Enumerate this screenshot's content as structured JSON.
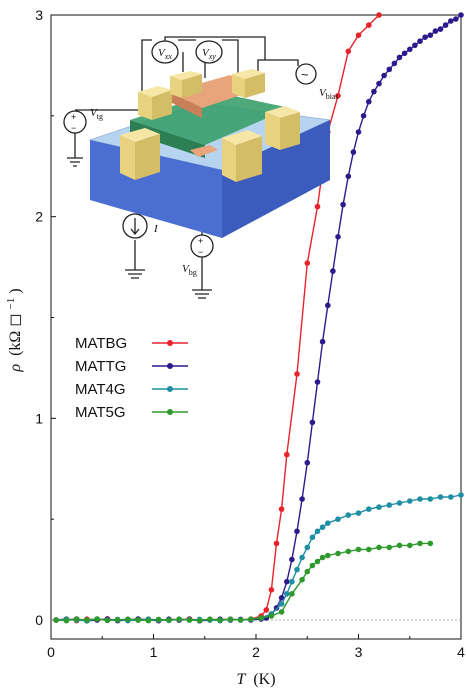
{
  "chart_data": {
    "type": "line",
    "title": "",
    "xlabel": "T",
    "xlabel_unit": "(K)",
    "ylabel": "ρ",
    "ylabel_unit": "(kΩ ◻",
    "ylabel_exp": "−1",
    "xlim": [
      0,
      4
    ],
    "ylim": [
      -0.1,
      3
    ],
    "xticks": [
      "0",
      "1",
      "2",
      "3",
      "4"
    ],
    "yticks": [
      "0",
      "1",
      "2",
      "3"
    ],
    "reference_line": 0,
    "legend_position": "center-left",
    "series": [
      {
        "name": "MATBG",
        "color": "#e8232a",
        "x": [
          0.05,
          0.15,
          0.25,
          0.35,
          0.45,
          0.55,
          0.65,
          0.75,
          0.85,
          0.95,
          1.05,
          1.15,
          1.25,
          1.35,
          1.45,
          1.55,
          1.65,
          1.75,
          1.85,
          1.95,
          2.05,
          2.1,
          2.15,
          2.2,
          2.25,
          2.3,
          2.4,
          2.5,
          2.6,
          2.7,
          2.8,
          2.9,
          3.0,
          3.1,
          3.2
        ],
        "y": [
          0.0,
          0.005,
          -0.003,
          0.004,
          0.0,
          0.006,
          -0.002,
          0.003,
          0.0,
          0.004,
          -0.003,
          0.002,
          0.0,
          0.005,
          -0.002,
          0.003,
          0.0,
          0.004,
          0.0,
          0.005,
          0.02,
          0.05,
          0.15,
          0.38,
          0.55,
          0.82,
          1.22,
          1.77,
          2.05,
          2.42,
          2.6,
          2.82,
          2.9,
          2.95,
          3.0
        ]
      },
      {
        "name": "MATTG",
        "color": "#2b1b8c",
        "x": [
          0.05,
          0.15,
          0.25,
          0.35,
          0.45,
          0.55,
          0.65,
          0.75,
          0.85,
          0.95,
          1.05,
          1.15,
          1.25,
          1.35,
          1.45,
          1.55,
          1.65,
          1.75,
          1.85,
          1.95,
          2.05,
          2.1,
          2.15,
          2.2,
          2.25,
          2.3,
          2.35,
          2.4,
          2.45,
          2.5,
          2.55,
          2.6,
          2.65,
          2.7,
          2.75,
          2.8,
          2.85,
          2.9,
          2.95,
          3.0,
          3.05,
          3.1,
          3.15,
          3.2,
          3.25,
          3.3,
          3.35,
          3.4,
          3.45,
          3.5,
          3.55,
          3.6,
          3.65,
          3.7,
          3.75,
          3.8,
          3.85,
          3.9,
          3.95,
          4.0
        ],
        "y": [
          0.0,
          0.0,
          0.005,
          -0.004,
          0.0,
          0.004,
          -0.003,
          0.0,
          0.005,
          0.0,
          -0.003,
          0.004,
          0.0,
          0.003,
          -0.004,
          0.0,
          0.004,
          0.0,
          0.003,
          0.0,
          0.005,
          0.01,
          0.03,
          0.06,
          0.11,
          0.19,
          0.3,
          0.44,
          0.6,
          0.78,
          0.98,
          1.18,
          1.38,
          1.56,
          1.73,
          1.9,
          2.06,
          2.2,
          2.32,
          2.42,
          2.5,
          2.57,
          2.62,
          2.66,
          2.7,
          2.73,
          2.76,
          2.79,
          2.81,
          2.83,
          2.85,
          2.87,
          2.89,
          2.9,
          2.92,
          2.93,
          2.95,
          2.97,
          2.98,
          3.0
        ]
      },
      {
        "name": "MAT4G",
        "color": "#1e8fa4",
        "x": [
          0.05,
          0.15,
          0.25,
          0.35,
          0.45,
          0.55,
          0.65,
          0.75,
          0.85,
          0.95,
          1.05,
          1.15,
          1.25,
          1.35,
          1.45,
          1.55,
          1.65,
          1.75,
          1.85,
          1.95,
          2.05,
          2.15,
          2.25,
          2.3,
          2.35,
          2.4,
          2.45,
          2.5,
          2.55,
          2.6,
          2.65,
          2.7,
          2.8,
          2.9,
          3.0,
          3.1,
          3.2,
          3.3,
          3.4,
          3.5,
          3.6,
          3.7,
          3.8,
          3.9,
          4.0
        ],
        "y": [
          0.0,
          0.004,
          0.0,
          -0.004,
          0.005,
          0.0,
          0.003,
          -0.003,
          0.0,
          0.004,
          0.0,
          -0.002,
          0.004,
          0.0,
          0.003,
          0.0,
          -0.003,
          0.004,
          0.0,
          0.003,
          0.01,
          0.03,
          0.08,
          0.13,
          0.19,
          0.25,
          0.31,
          0.36,
          0.41,
          0.44,
          0.46,
          0.48,
          0.5,
          0.52,
          0.53,
          0.55,
          0.56,
          0.57,
          0.58,
          0.59,
          0.6,
          0.6,
          0.61,
          0.61,
          0.62
        ]
      },
      {
        "name": "MAT5G",
        "color": "#2e9a2e",
        "x": [
          0.05,
          0.15,
          0.25,
          0.35,
          0.45,
          0.55,
          0.65,
          0.75,
          0.85,
          0.95,
          1.05,
          1.15,
          1.25,
          1.35,
          1.45,
          1.55,
          1.65,
          1.75,
          1.85,
          1.95,
          2.05,
          2.15,
          2.25,
          2.35,
          2.45,
          2.5,
          2.55,
          2.6,
          2.65,
          2.7,
          2.8,
          2.9,
          3.0,
          3.1,
          3.2,
          3.3,
          3.4,
          3.5,
          3.6,
          3.7
        ],
        "y": [
          0.0,
          -0.003,
          0.004,
          0.0,
          0.005,
          -0.002,
          0.0,
          0.004,
          0.0,
          -0.003,
          0.003,
          0.0,
          0.004,
          0.0,
          -0.002,
          0.004,
          0.0,
          0.003,
          0.0,
          0.004,
          0.01,
          0.02,
          0.04,
          0.13,
          0.2,
          0.24,
          0.27,
          0.29,
          0.31,
          0.32,
          0.33,
          0.34,
          0.35,
          0.35,
          0.36,
          0.36,
          0.37,
          0.37,
          0.38,
          0.38
        ]
      }
    ]
  },
  "inset": {
    "label_vxx": "V",
    "label_vxx_sub": "xx",
    "label_vxy": "V",
    "label_vxy_sub": "xy",
    "label_vtg": "V",
    "label_vtg_sub": "tg",
    "label_vbias": "V",
    "label_vbias_sub": "bias",
    "label_vbg": "V",
    "label_vbg_sub": "bg",
    "label_current": "I",
    "plus_sign": "+",
    "minus_sign": "−",
    "ac_symbol": "~"
  }
}
